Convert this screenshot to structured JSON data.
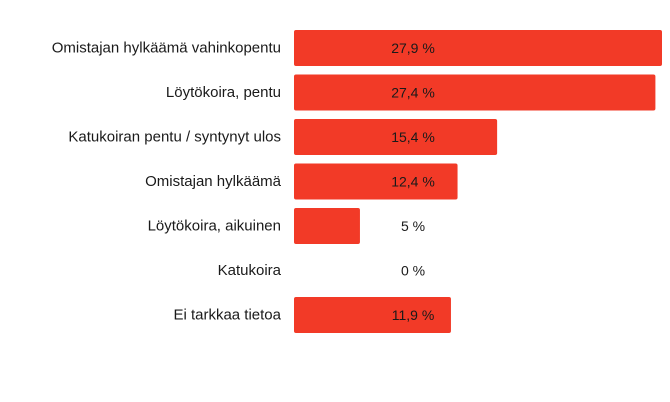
{
  "chart_data": {
    "type": "bar",
    "orientation": "horizontal",
    "categories": [
      "Omistajan hylkäämä vahinkopentu",
      "Löytökoira, pentu",
      "Katukoiran pentu / syntynyt ulos",
      "Omistajan hylkäämä",
      "Löytökoira, aikuinen",
      "Katukoira",
      "Ei tarkkaa tietoa"
    ],
    "values": [
      27.9,
      27.4,
      15.4,
      12.4,
      5,
      0,
      11.9
    ],
    "value_labels": [
      "27,9 %",
      "27,4 %",
      "15,4 %",
      "12,4 %",
      "5 %",
      "0 %",
      "11,9 %"
    ],
    "unit": "%",
    "bar_color": "#f23a27",
    "xlim": [
      0,
      27.9
    ],
    "grid": false,
    "legend": "none"
  }
}
